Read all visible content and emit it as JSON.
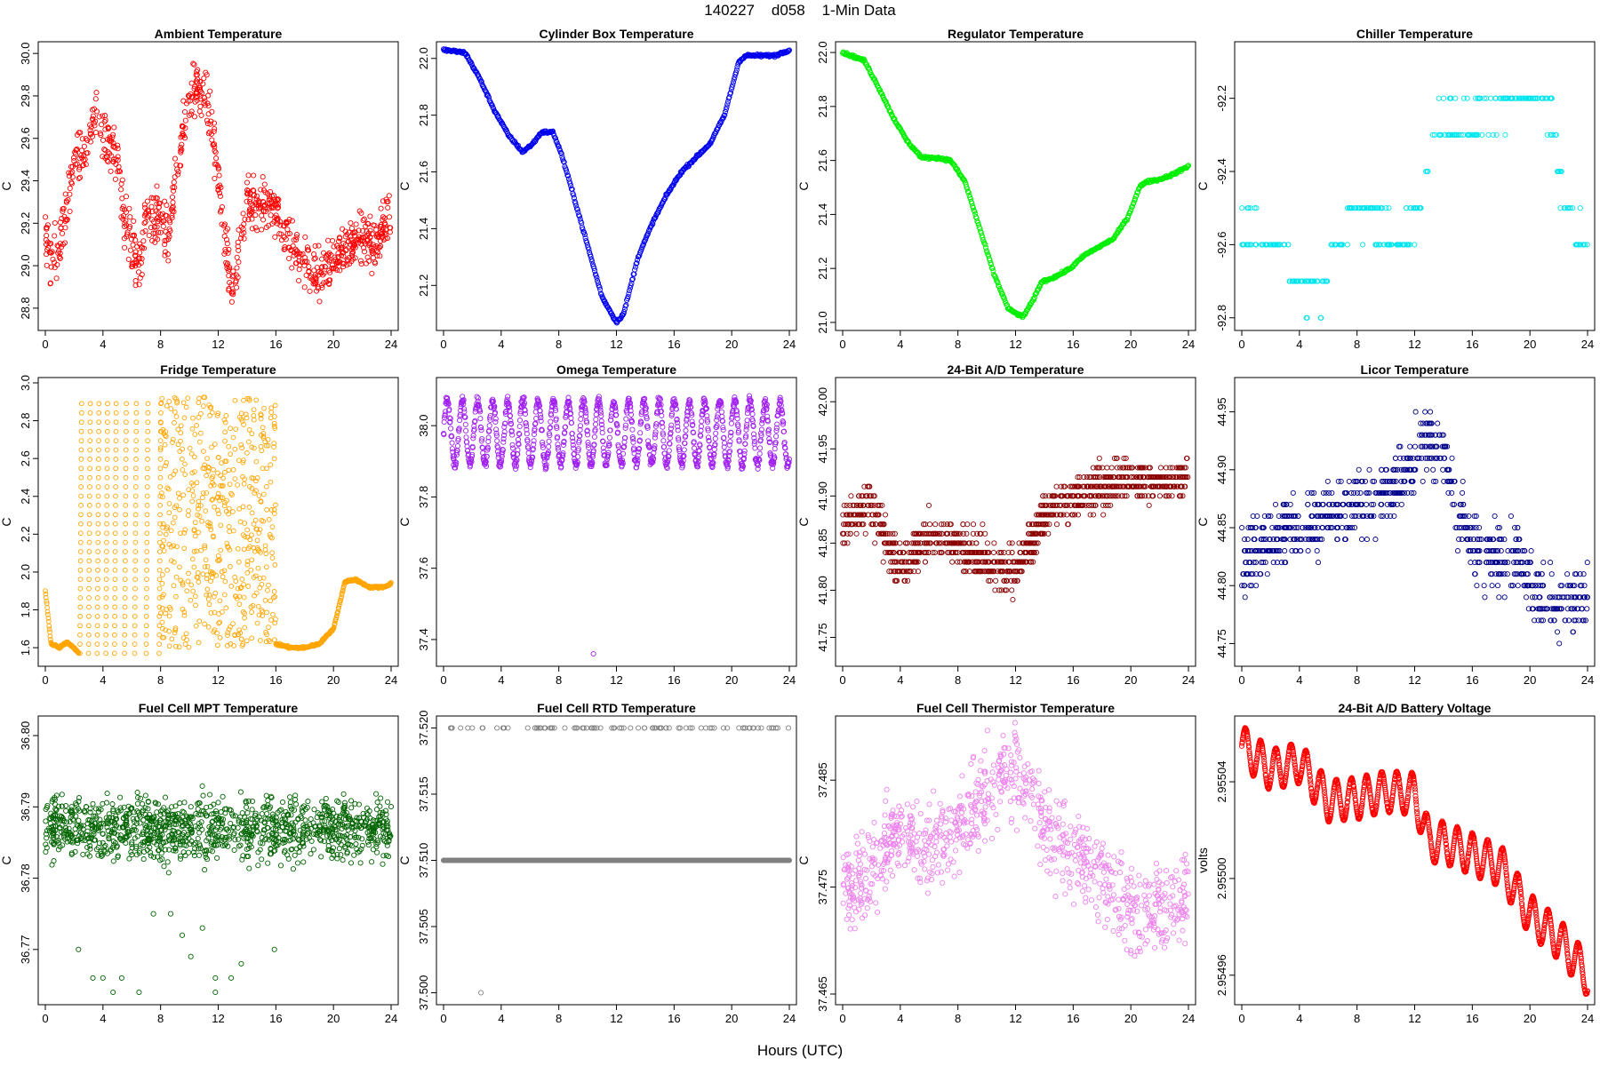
{
  "page": {
    "title": "140227    d058    1-Min Data",
    "xlabel": "Hours (UTC)"
  },
  "chart_data": [
    {
      "type": "scatter",
      "title": "Ambient Temperature",
      "ylabel": "C",
      "color": "#ff0000",
      "xlim": [
        0,
        24
      ],
      "ylim": [
        28.72,
        30.03
      ],
      "xticks": [
        0,
        4,
        8,
        12,
        16,
        20,
        24
      ],
      "yticks": [
        "28.8",
        "29.0",
        "29.2",
        "29.4",
        "29.6",
        "29.8",
        "30.0"
      ],
      "profile": [
        [
          0,
          29.2
        ],
        [
          0.3,
          29.0
        ],
        [
          1,
          29.1
        ],
        [
          1.5,
          29.3
        ],
        [
          2,
          29.5
        ],
        [
          2.5,
          29.5
        ],
        [
          3,
          29.6
        ],
        [
          3.5,
          29.7
        ],
        [
          4,
          29.6
        ],
        [
          5,
          29.5
        ],
        [
          5.5,
          29.2
        ],
        [
          6,
          29.1
        ],
        [
          6.5,
          29.0
        ],
        [
          7,
          29.2
        ],
        [
          8,
          29.25
        ],
        [
          8.5,
          29.1
        ],
        [
          9,
          29.4
        ],
        [
          9.5,
          29.6
        ],
        [
          10,
          29.75
        ],
        [
          10.5,
          29.85
        ],
        [
          11,
          29.8
        ],
        [
          11.5,
          29.7
        ],
        [
          12,
          29.4
        ],
        [
          12.5,
          29.1
        ],
        [
          13,
          28.85
        ],
        [
          13.5,
          29.1
        ],
        [
          14,
          29.3
        ],
        [
          15,
          29.3
        ],
        [
          16,
          29.25
        ],
        [
          17,
          29.1
        ],
        [
          18,
          29.05
        ],
        [
          19,
          28.95
        ],
        [
          19.5,
          29.0
        ],
        [
          20,
          29.05
        ],
        [
          21,
          29.1
        ],
        [
          22,
          29.15
        ],
        [
          23,
          29.1
        ],
        [
          24,
          29.25
        ]
      ],
      "spread": 0.13,
      "mode": "noise"
    },
    {
      "type": "scatter",
      "title": "Cylinder Box Temperature",
      "ylabel": "C",
      "color": "#0000ee",
      "xlim": [
        0,
        24
      ],
      "ylim": [
        21.06,
        22.04
      ],
      "xticks": [
        0,
        4,
        8,
        12,
        16,
        20,
        24
      ],
      "yticks": [
        "21.2",
        "21.4",
        "21.6",
        "21.8",
        "22.0"
      ],
      "profile": [
        [
          0,
          22.03
        ],
        [
          1.5,
          22.02
        ],
        [
          2.5,
          21.93
        ],
        [
          3.5,
          21.82
        ],
        [
          4.5,
          21.73
        ],
        [
          5.5,
          21.67
        ],
        [
          6.2,
          21.7
        ],
        [
          6.8,
          21.74
        ],
        [
          7.6,
          21.74
        ],
        [
          8.2,
          21.66
        ],
        [
          9,
          21.52
        ],
        [
          10,
          21.34
        ],
        [
          11,
          21.16
        ],
        [
          12,
          21.07
        ],
        [
          12.5,
          21.1
        ],
        [
          13.5,
          21.3
        ],
        [
          14.5,
          21.42
        ],
        [
          15.5,
          21.52
        ],
        [
          16.5,
          21.6
        ],
        [
          17.5,
          21.65
        ],
        [
          18.5,
          21.7
        ],
        [
          19.5,
          21.8
        ],
        [
          20.5,
          21.99
        ],
        [
          21,
          22.01
        ],
        [
          23,
          22.01
        ],
        [
          24,
          22.03
        ]
      ],
      "spread": 0.008,
      "mode": "line"
    },
    {
      "type": "scatter",
      "title": "Regulator Temperature",
      "ylabel": "C",
      "color": "#00ee00",
      "xlim": [
        0,
        24
      ],
      "ylim": [
        20.99,
        22.02
      ],
      "xticks": [
        0,
        4,
        8,
        12,
        16,
        20,
        24
      ],
      "yticks": [
        "21.0",
        "21.2",
        "21.4",
        "21.6",
        "21.8",
        "22.0"
      ],
      "profile": [
        [
          0,
          22.0
        ],
        [
          1.5,
          21.97
        ],
        [
          2.5,
          21.87
        ],
        [
          3.5,
          21.76
        ],
        [
          4.5,
          21.67
        ],
        [
          5.5,
          21.61
        ],
        [
          6.5,
          21.61
        ],
        [
          7.5,
          21.6
        ],
        [
          8.5,
          21.52
        ],
        [
          9.5,
          21.35
        ],
        [
          10.5,
          21.18
        ],
        [
          11.5,
          21.05
        ],
        [
          12.5,
          21.02
        ],
        [
          13.2,
          21.08
        ],
        [
          13.8,
          21.15
        ],
        [
          14.8,
          21.17
        ],
        [
          15.8,
          21.2
        ],
        [
          16.8,
          21.25
        ],
        [
          17.8,
          21.28
        ],
        [
          18.8,
          21.31
        ],
        [
          19.8,
          21.39
        ],
        [
          20.6,
          21.5
        ],
        [
          21,
          21.52
        ],
        [
          22,
          21.53
        ],
        [
          23,
          21.55
        ],
        [
          24,
          21.58
        ]
      ],
      "spread": 0.008,
      "mode": "line"
    },
    {
      "type": "scatter",
      "title": "Chiller Temperature",
      "ylabel": "C",
      "color": "#00e5ee",
      "xlim": [
        0,
        24
      ],
      "ylim": [
        -92.82,
        -92.06
      ],
      "xticks": [
        0,
        4,
        8,
        12,
        16,
        20,
        24
      ],
      "yticks": [
        "-92.8",
        "-92.6",
        "-92.4",
        "-92.2"
      ],
      "profile": [
        [
          0,
          -92.55
        ],
        [
          3,
          -92.6
        ],
        [
          3.5,
          -92.7
        ],
        [
          4.5,
          -92.74
        ],
        [
          5.5,
          -92.72
        ],
        [
          6.5,
          -92.62
        ],
        [
          7,
          -92.6
        ],
        [
          7.5,
          -92.52
        ],
        [
          8.5,
          -92.5
        ],
        [
          10,
          -92.56
        ],
        [
          11,
          -92.6
        ],
        [
          12,
          -92.55
        ],
        [
          12.8,
          -92.4
        ],
        [
          13.5,
          -92.25
        ],
        [
          15,
          -92.27
        ],
        [
          17,
          -92.24
        ],
        [
          19,
          -92.22
        ],
        [
          20.5,
          -92.18
        ],
        [
          21.5,
          -92.25
        ],
        [
          22,
          -92.4
        ],
        [
          23,
          -92.55
        ],
        [
          24,
          -92.58
        ]
      ],
      "spread": 0.07,
      "mode": "quant",
      "quant": 0.1,
      "count": 340
    },
    {
      "type": "scatter",
      "title": "Fridge Temperature",
      "ylabel": "C",
      "color": "#ffa500",
      "xlim": [
        0,
        24
      ],
      "ylim": [
        1.53,
        3.0
      ],
      "xticks": [
        0,
        4,
        8,
        12,
        16,
        20,
        24
      ],
      "yticks": [
        "1.6",
        "1.8",
        "2.0",
        "2.2",
        "2.4",
        "2.6",
        "2.8",
        "3.0"
      ],
      "profile": [
        [
          0,
          1.9
        ],
        [
          0.4,
          1.62
        ],
        [
          1,
          1.6
        ],
        [
          1.5,
          1.63
        ],
        [
          2,
          1.6
        ],
        [
          2.3,
          1.57
        ]
      ],
      "profile2": [
        [
          16,
          1.62
        ],
        [
          17,
          1.6
        ],
        [
          18,
          1.6
        ],
        [
          19,
          1.62
        ],
        [
          20,
          1.7
        ],
        [
          20.8,
          1.95
        ],
        [
          21.5,
          1.96
        ],
        [
          22.5,
          1.92
        ],
        [
          23.5,
          1.92
        ],
        [
          24,
          1.94
        ]
      ],
      "spread": 0.01,
      "mode": "fridge"
    },
    {
      "type": "scatter",
      "title": "Omega Temperature",
      "ylabel": "C",
      "color": "#a020f0",
      "xlim": [
        0,
        24
      ],
      "ylim": [
        37.34,
        38.12
      ],
      "xticks": [
        0,
        4,
        8,
        12,
        16,
        20,
        24
      ],
      "yticks": [
        "37.4",
        "37.6",
        "37.8",
        "38.0"
      ],
      "profile": [
        [
          0,
          37.98
        ],
        [
          24,
          37.98
        ]
      ],
      "spread": 0.04,
      "mode": "omega",
      "outlier": [
        10.4,
        37.36
      ]
    },
    {
      "type": "scatter",
      "title": "24-Bit A/D Temperature",
      "ylabel": "C",
      "color": "#8b0000",
      "xlim": [
        0,
        24
      ],
      "ylim": [
        41.725,
        42.02
      ],
      "xticks": [
        0,
        4,
        8,
        12,
        16,
        20,
        24
      ],
      "yticks": [
        "41.75",
        "41.80",
        "41.85",
        "41.90",
        "41.95",
        "42.00"
      ],
      "profile": [
        [
          0,
          41.87
        ],
        [
          2,
          41.89
        ],
        [
          4,
          41.82
        ],
        [
          6,
          41.86
        ],
        [
          8,
          41.85
        ],
        [
          10,
          41.83
        ],
        [
          12,
          41.82
        ],
        [
          14,
          41.88
        ],
        [
          16,
          41.9
        ],
        [
          18,
          41.91
        ],
        [
          20,
          41.92
        ],
        [
          22,
          41.91
        ],
        [
          24,
          41.92
        ]
      ],
      "spread": 0.04,
      "mode": "quant",
      "quant": 0.01,
      "count": 1100
    },
    {
      "type": "scatter",
      "title": "Licor Temperature",
      "ylabel": "C",
      "color": "#00008b",
      "xlim": [
        0,
        24
      ],
      "ylim": [
        44.735,
        44.975
      ],
      "xticks": [
        0,
        4,
        8,
        12,
        16,
        20,
        24
      ],
      "yticks": [
        "44.75",
        "44.80",
        "44.85",
        "44.90",
        "44.95"
      ],
      "profile": [
        [
          0,
          44.82
        ],
        [
          2,
          44.84
        ],
        [
          4,
          44.85
        ],
        [
          6,
          44.86
        ],
        [
          8,
          44.87
        ],
        [
          10,
          44.88
        ],
        [
          12,
          44.91
        ],
        [
          13,
          44.93
        ],
        [
          14,
          44.91
        ],
        [
          15,
          44.86
        ],
        [
          17,
          44.82
        ],
        [
          19,
          44.83
        ],
        [
          20,
          44.8
        ],
        [
          22,
          44.78
        ],
        [
          24,
          44.79
        ]
      ],
      "spread": 0.05,
      "mode": "quant",
      "quant": 0.01,
      "count": 800
    },
    {
      "type": "scatter",
      "title": "Fuel Cell MPT Temperature",
      "ylabel": "C",
      "color": "#006400",
      "xlim": [
        0,
        24
      ],
      "ylim": [
        36.763,
        36.802
      ],
      "xticks": [
        0,
        4,
        8,
        12,
        16,
        20,
        24
      ],
      "yticks": [
        "36.77",
        "36.78",
        "36.79",
        "36.80"
      ],
      "profile": [
        [
          0,
          36.787
        ],
        [
          24,
          36.787
        ]
      ],
      "spread": 0.005,
      "mode": "mpt"
    },
    {
      "type": "scatter",
      "title": "Fuel Cell RTD Temperature",
      "ylabel": "C",
      "color": "#808080",
      "xlim": [
        0,
        24
      ],
      "ylim": [
        37.4995,
        37.5205
      ],
      "xticks": [
        0,
        4,
        8,
        12,
        16,
        20,
        24
      ],
      "yticks": [
        "37.500",
        "37.505",
        "37.510",
        "37.515",
        "37.520"
      ],
      "profile": [
        [
          0,
          37.51
        ],
        [
          24,
          37.51
        ]
      ],
      "spread": 0,
      "mode": "rtd",
      "outlier": [
        2.6,
        37.5
      ]
    },
    {
      "type": "scatter",
      "title": "Fuel Cell Thermistor Temperature",
      "ylabel": "C",
      "color": "#ee82ee",
      "xlim": [
        0,
        24
      ],
      "ylim": [
        37.4645,
        37.4905
      ],
      "xticks": [
        0,
        4,
        8,
        12,
        16,
        20,
        24
      ],
      "yticks": [
        "37.465",
        "37.475",
        "37.485"
      ],
      "profile": [
        [
          0,
          37.474
        ],
        [
          2,
          37.477
        ],
        [
          4,
          37.48
        ],
        [
          6,
          37.479
        ],
        [
          8,
          37.481
        ],
        [
          10,
          37.484
        ],
        [
          12,
          37.486
        ],
        [
          14,
          37.481
        ],
        [
          16,
          37.478
        ],
        [
          18,
          37.476
        ],
        [
          20,
          37.472
        ],
        [
          22,
          37.473
        ],
        [
          24,
          37.474
        ]
      ],
      "spread": 0.0045,
      "mode": "noise"
    },
    {
      "type": "scatter",
      "title": "24-Bit A/D Battery Voltage",
      "ylabel": "volts",
      "color": "#ff0000",
      "xlim": [
        0,
        24
      ],
      "ylim": [
        2.95495,
        2.955065
      ],
      "xticks": [
        0,
        4,
        8,
        12,
        16,
        20,
        24
      ],
      "yticks": [
        "2.95496",
        "2.95500",
        "2.95504"
      ],
      "profile": [
        [
          0,
          2.955055
        ],
        [
          2,
          2.955045
        ],
        [
          4,
          2.955048
        ],
        [
          6,
          2.955032
        ],
        [
          8,
          2.955033
        ],
        [
          10,
          2.955036
        ],
        [
          12,
          2.955035
        ],
        [
          13,
          2.955015
        ],
        [
          14,
          2.955015
        ],
        [
          16,
          2.95501
        ],
        [
          18,
          2.955005
        ],
        [
          20,
          2.954985
        ],
        [
          22,
          2.954975
        ],
        [
          24,
          2.95496
        ]
      ],
      "spread": 4.5e-06,
      "mode": "sine"
    }
  ]
}
